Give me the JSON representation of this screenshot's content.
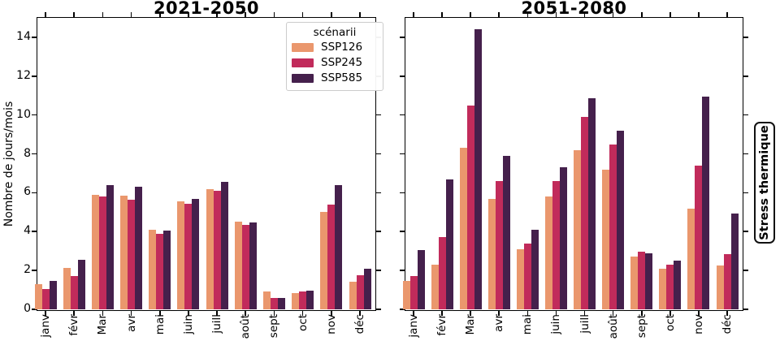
{
  "figure": {
    "ylabel": "Nombre de jours/mois",
    "right_label": "Stress thermique",
    "background": "#ffffff",
    "axis_color": "#000000",
    "legend": {
      "title": "scénarii",
      "position": "upper right of left subplot"
    }
  },
  "chart_data": [
    {
      "type": "bar",
      "title": "2021-2050",
      "categories": [
        "janv",
        "févr",
        "Mar",
        "avr",
        "mai",
        "juin",
        "juill",
        "août",
        "sept",
        "oct",
        "nov",
        "déc"
      ],
      "xlabel": "",
      "ylabel": "Nombre de jours/mois",
      "ylim": [
        0,
        15
      ],
      "yticks": [
        0,
        2,
        4,
        6,
        8,
        10,
        12,
        14
      ],
      "grid": false,
      "legend_position": "upper right",
      "series": [
        {
          "name": "SSP126",
          "color": "#EA976D",
          "values": [
            1.3,
            2.15,
            5.9,
            5.85,
            4.1,
            5.55,
            6.2,
            4.5,
            0.9,
            0.85,
            5.0,
            1.4
          ]
        },
        {
          "name": "SSP245",
          "color": "#C12B5B",
          "values": [
            1.05,
            1.7,
            5.8,
            5.65,
            3.9,
            5.45,
            6.1,
            4.35,
            0.6,
            0.9,
            5.4,
            1.75
          ]
        },
        {
          "name": "SSP585",
          "color": "#45204C",
          "values": [
            1.45,
            2.55,
            6.4,
            6.3,
            4.05,
            5.7,
            6.55,
            4.45,
            0.6,
            0.95,
            6.4,
            2.1
          ]
        }
      ]
    },
    {
      "type": "bar",
      "title": "2051-2080",
      "categories": [
        "janv",
        "févr",
        "Mar",
        "avr",
        "mai",
        "juin",
        "juill",
        "août",
        "sept",
        "oct",
        "nov",
        "déc"
      ],
      "xlabel": "",
      "ylabel": "",
      "ylim": [
        0,
        15
      ],
      "yticks": [
        0,
        2,
        4,
        6,
        8,
        10,
        12,
        14
      ],
      "grid": false,
      "legend_position": "none",
      "series": [
        {
          "name": "SSP126",
          "color": "#EA976D",
          "values": [
            1.45,
            2.3,
            8.3,
            5.7,
            3.1,
            5.8,
            8.2,
            7.2,
            2.7,
            2.1,
            5.2,
            2.25
          ]
        },
        {
          "name": "SSP245",
          "color": "#C12B5B",
          "values": [
            1.7,
            3.7,
            10.5,
            6.6,
            3.4,
            6.6,
            9.9,
            8.5,
            2.95,
            2.3,
            7.4,
            2.85
          ]
        },
        {
          "name": "SSP585",
          "color": "#45204C",
          "values": [
            3.05,
            6.7,
            14.4,
            7.9,
            4.1,
            7.3,
            10.85,
            9.2,
            2.9,
            2.5,
            10.95,
            4.95
          ]
        }
      ]
    }
  ]
}
